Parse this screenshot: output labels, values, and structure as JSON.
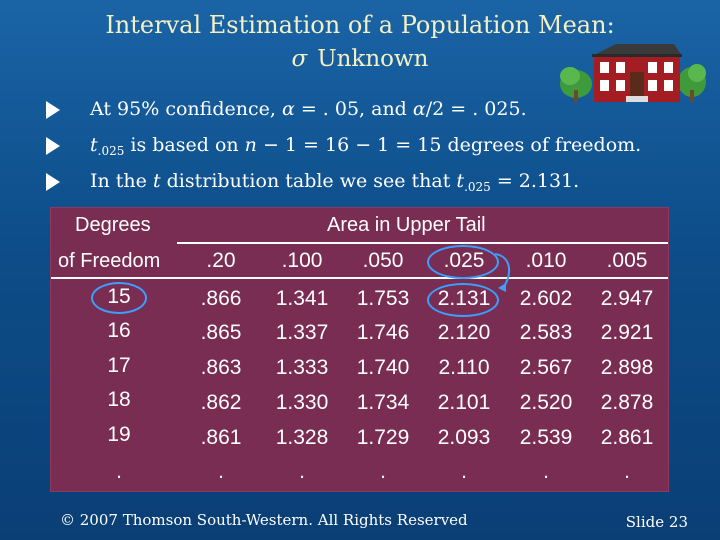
{
  "slide": {
    "title_line1": "Interval Estimation of a Population Mean:",
    "title_sigma": "σ",
    "title_line2": "Unknown"
  },
  "bullets": [
    {
      "p1": "At 95% confidence, ",
      "alpha1": "α",
      "p2": " = . 05, and ",
      "alpha2": "α",
      "p3": "/2 = . 025."
    },
    {
      "t": "t",
      "sub": ".025",
      "rest": " is based on ",
      "n": "n",
      "rest2": " − 1 = 16 − 1 = 15 degrees of freedom."
    },
    {
      "p1": "In the ",
      "t": "t",
      "p2": "  distribution table we see that ",
      "t2": "t",
      "sub": ".025",
      "p3": " = 2.131."
    }
  ],
  "table": {
    "header_df_line1": "Degrees",
    "header_df_line2": "of Freedom",
    "header_area": "Area in Upper Tail",
    "columns": [
      ".20",
      ".100",
      ".050",
      ".025",
      ".010",
      ".005"
    ],
    "rows": [
      {
        "df": "15",
        "values": [
          ".866",
          "1.341",
          "1.753",
          "2.131",
          "2.602",
          "2.947"
        ]
      },
      {
        "df": "16",
        "values": [
          ".865",
          "1.337",
          "1.746",
          "2.120",
          "2.583",
          "2.921"
        ]
      },
      {
        "df": "17",
        "values": [
          ".863",
          "1.333",
          "1.740",
          "2.110",
          "2.567",
          "2.898"
        ]
      },
      {
        "df": "18",
        "values": [
          ".862",
          "1.330",
          "1.734",
          "2.101",
          "2.520",
          "2.878"
        ]
      },
      {
        "df": "19",
        "values": [
          ".861",
          "1.328",
          "1.729",
          "2.093",
          "2.539",
          "2.861"
        ]
      },
      {
        "df": ".",
        "values": [
          ".",
          ".",
          ".",
          ".",
          ".",
          "."
        ]
      }
    ]
  },
  "footer": {
    "copyright": "© 2007  Thomson South-Western.  All Rights Reserved",
    "slide_number": "Slide 23"
  },
  "colors": {
    "background": "#0d4d89",
    "title": "#f4f0c6",
    "table_fill": "#7a2d52",
    "highlight": "#39a0ff"
  }
}
